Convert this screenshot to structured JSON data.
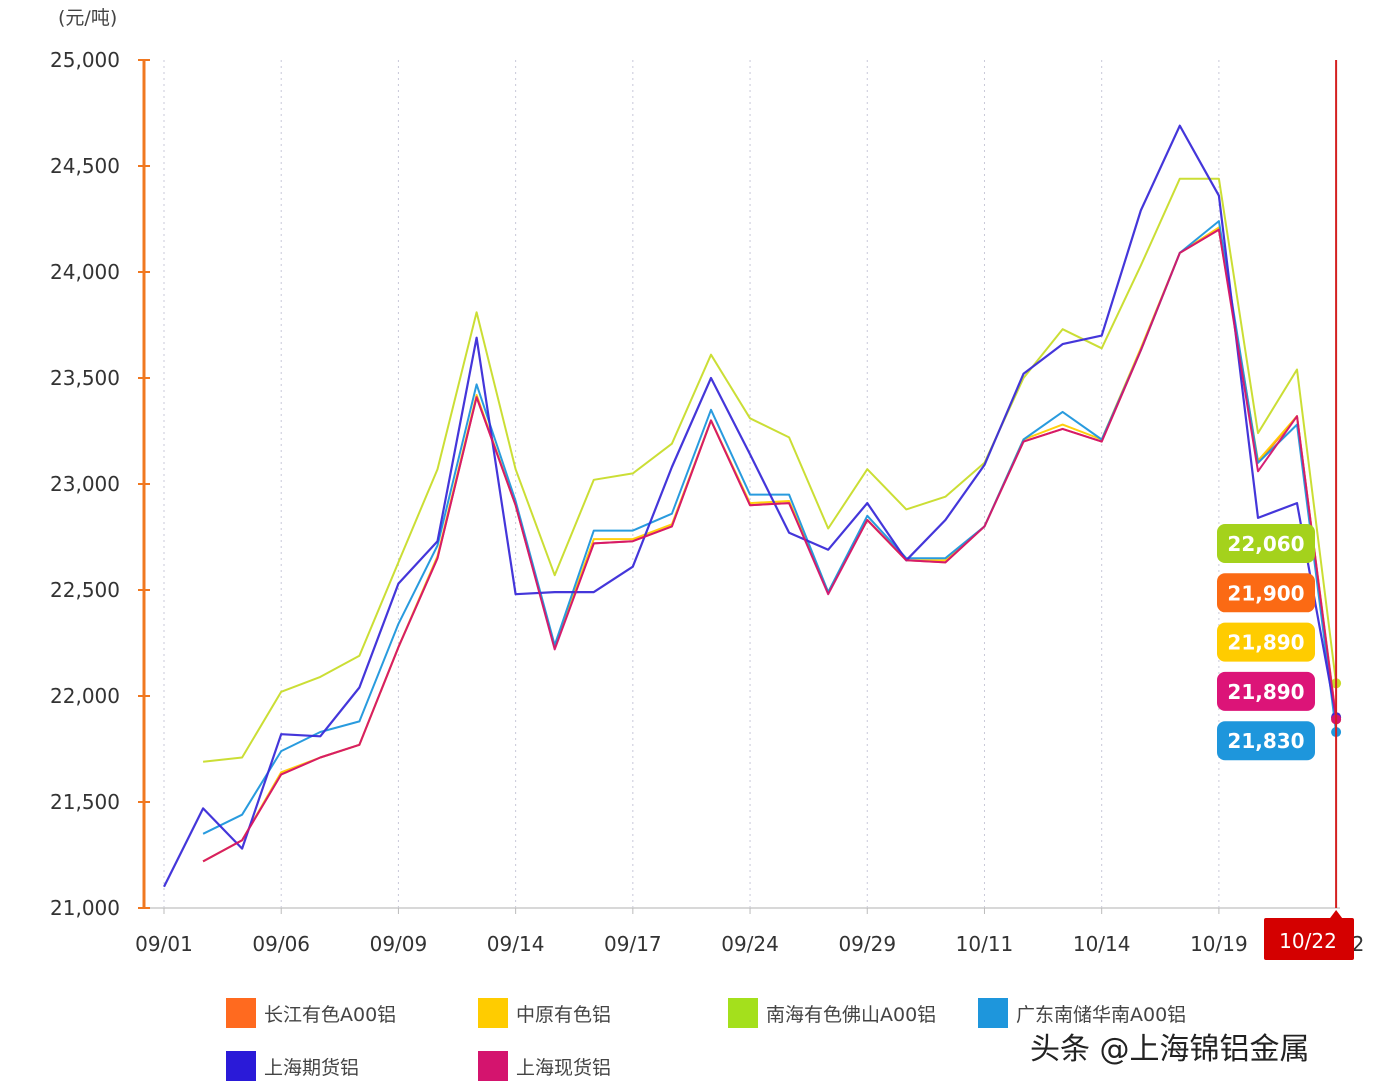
{
  "chart_data": {
    "type": "line",
    "unit_label": "(元/吨)",
    "ylim": [
      21000,
      25000
    ],
    "y_ticks": [
      "21,000",
      "21,500",
      "22,000",
      "22,500",
      "23,000",
      "23,500",
      "24,000",
      "24,500",
      "25,000"
    ],
    "y_tick_values": [
      21000,
      21500,
      22000,
      22500,
      23000,
      23500,
      24000,
      24500,
      25000
    ],
    "x_tick_labels": [
      "09/01",
      "09/06",
      "09/09",
      "09/14",
      "09/17",
      "09/24",
      "09/29",
      "10/11",
      "10/14",
      "10/19",
      "10/22"
    ],
    "highlight_x_label": "10/22",
    "highlight_partial_text": "2",
    "grid": "vertical-dotted",
    "series": [
      {
        "name": "长江有色A00铝",
        "color": "#ff6a1f",
        "values": [
          null,
          21220,
          21320,
          21630,
          21710,
          21770,
          22230,
          22650,
          23410,
          22900,
          22230,
          22720,
          22730,
          22800,
          23300,
          22900,
          22910,
          22490,
          22830,
          22640,
          22630,
          22800,
          23200,
          23260,
          23200,
          23630,
          24090,
          24200,
          23100,
          23320,
          21900
        ]
      },
      {
        "name": "中原有色铝",
        "color": "#ffcc00",
        "values": [
          null,
          21220,
          21320,
          21640,
          21710,
          21770,
          22230,
          22660,
          23420,
          22900,
          22230,
          22740,
          22740,
          22810,
          23300,
          22910,
          22920,
          22490,
          22830,
          22640,
          22640,
          22800,
          23210,
          23280,
          23210,
          23640,
          24090,
          24210,
          23110,
          23320,
          21890
        ]
      },
      {
        "name": "南海有色佛山A00铝",
        "color": "#c8dc2a",
        "values": [
          null,
          21690,
          21710,
          22020,
          22090,
          22190,
          22630,
          23070,
          23810,
          23070,
          22570,
          23020,
          23050,
          23190,
          23610,
          23310,
          23220,
          22790,
          23070,
          22880,
          22940,
          23100,
          23500,
          23730,
          23640,
          24030,
          24440,
          24440,
          23240,
          23540,
          22060
        ]
      },
      {
        "name": "广东南储华南A00铝",
        "color": "#1e96dc",
        "values": [
          null,
          21350,
          21440,
          21740,
          21830,
          21880,
          22340,
          22710,
          23470,
          22920,
          22240,
          22780,
          22780,
          22860,
          23350,
          22950,
          22950,
          22490,
          22850,
          22650,
          22650,
          22800,
          23210,
          23340,
          23210,
          23630,
          24090,
          24240,
          23100,
          23280,
          21830
        ]
      },
      {
        "name": "上海期货铝",
        "color": "#3a2bd8",
        "values": [
          21100,
          21470,
          21280,
          21820,
          21810,
          22040,
          22530,
          22730,
          23690,
          22480,
          22490,
          22490,
          22610,
          23080,
          23500,
          23140,
          22770,
          22690,
          22910,
          22640,
          22830,
          23090,
          23520,
          23660,
          23700,
          24290,
          24690,
          24360,
          22840,
          22910,
          21900
        ]
      },
      {
        "name": "上海现货铝",
        "color": "#d4146e",
        "values": [
          null,
          21220,
          21320,
          21630,
          21710,
          21770,
          22230,
          22650,
          23410,
          22900,
          22220,
          22720,
          22730,
          22800,
          23300,
          22900,
          22910,
          22480,
          22830,
          22640,
          22630,
          22800,
          23200,
          23260,
          23200,
          23630,
          24090,
          24200,
          23060,
          23320,
          21890
        ]
      }
    ],
    "end_labels": [
      {
        "text": "22,060",
        "value": 22060,
        "color": "#a4d21c"
      },
      {
        "text": "21,900",
        "value": 21900,
        "color": "#fb6a14"
      },
      {
        "text": "21,890",
        "value": 21890,
        "color": "#ffcc00"
      },
      {
        "text": "21,890",
        "value": 21890,
        "color": "#dc1478"
      },
      {
        "text": "21,830",
        "value": 21830,
        "color": "#1e96dc"
      }
    ]
  },
  "legend": [
    {
      "label": "长江有色A00铝",
      "color": "#ff6a1f"
    },
    {
      "label": "中原有色铝",
      "color": "#ffcc00"
    },
    {
      "label": "南海有色佛山A00铝",
      "color": "#a4e01c"
    },
    {
      "label": "广东南储华南A00铝",
      "color": "#1e96dc"
    },
    {
      "label": "上海期货铝",
      "color": "#2a1ad8"
    },
    {
      "label": "上海现货铝",
      "color": "#d4146e"
    }
  ],
  "watermark": "头条 @上海锦铝金属"
}
